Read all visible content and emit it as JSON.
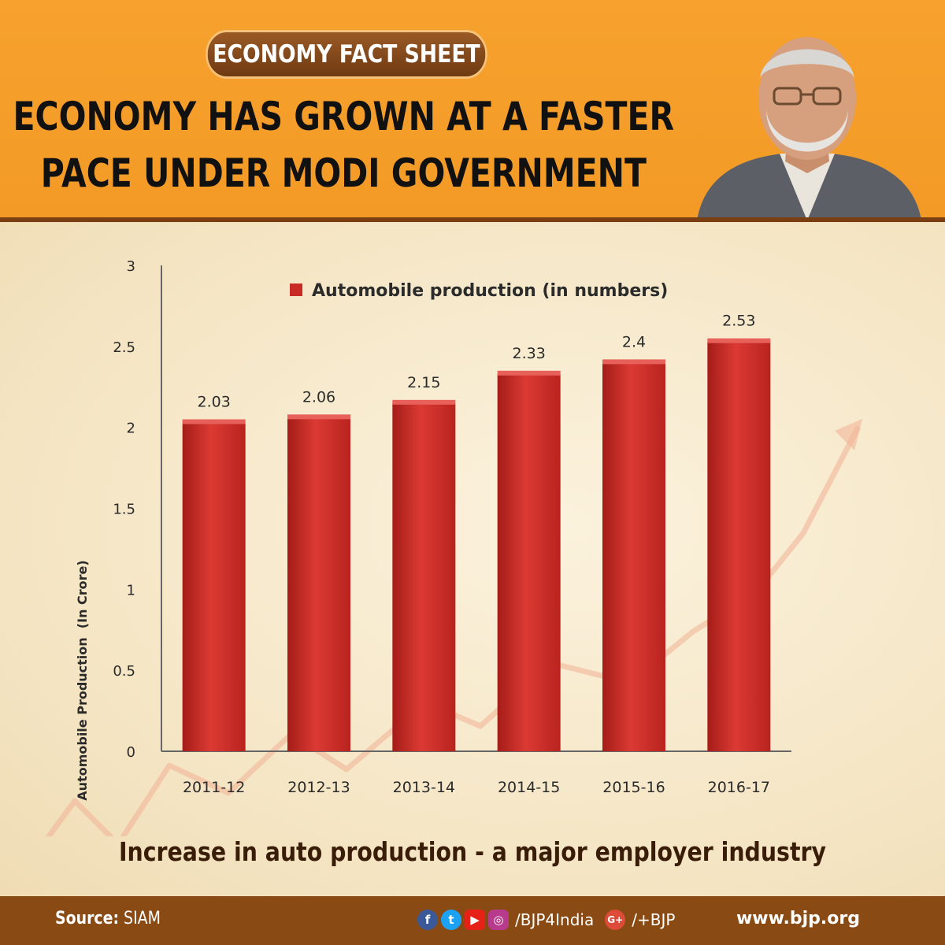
{
  "header": {
    "badge": "ECONOMY FACT SHEET",
    "headline_line1": "ECONOMY HAS GROWN AT A FASTER",
    "headline_line2": "PACE UNDER MODI GOVERNMENT"
  },
  "caption": "Increase in auto production - a major employer industry",
  "footer": {
    "source_label": "Source:",
    "source_value": "SIAM",
    "social_handle": "/BJP4India",
    "gplus_handle": "/+BJP",
    "website": "www.bjp.org",
    "icons": [
      "facebook-icon",
      "twitter-icon",
      "youtube-icon",
      "instagram-icon",
      "google-plus-icon"
    ]
  },
  "colors": {
    "header_orange": "#f39a26",
    "bar_red": "#d8322b",
    "footer_brown": "#8a4a14"
  },
  "chart_data": {
    "type": "bar",
    "categories": [
      "2011-12",
      "2012-13",
      "2013-14",
      "2014-15",
      "2015-16",
      "2016-17"
    ],
    "series": [
      {
        "name": "Automobile production (in numbers)",
        "values": [
          2.03,
          2.06,
          2.15,
          2.33,
          2.4,
          2.53
        ]
      }
    ],
    "data_labels": [
      "2.03",
      "2.06",
      "2.15",
      "2.33",
      "2.4",
      "2.53"
    ],
    "y_ticks": [
      "0",
      "0.5",
      "1",
      "1.5",
      "2",
      "2.5",
      "3"
    ],
    "ylabel": "Automobile Production  (In Crore)",
    "xlabel": "",
    "ylim": [
      0,
      3
    ],
    "legend": "top",
    "grid": false
  }
}
